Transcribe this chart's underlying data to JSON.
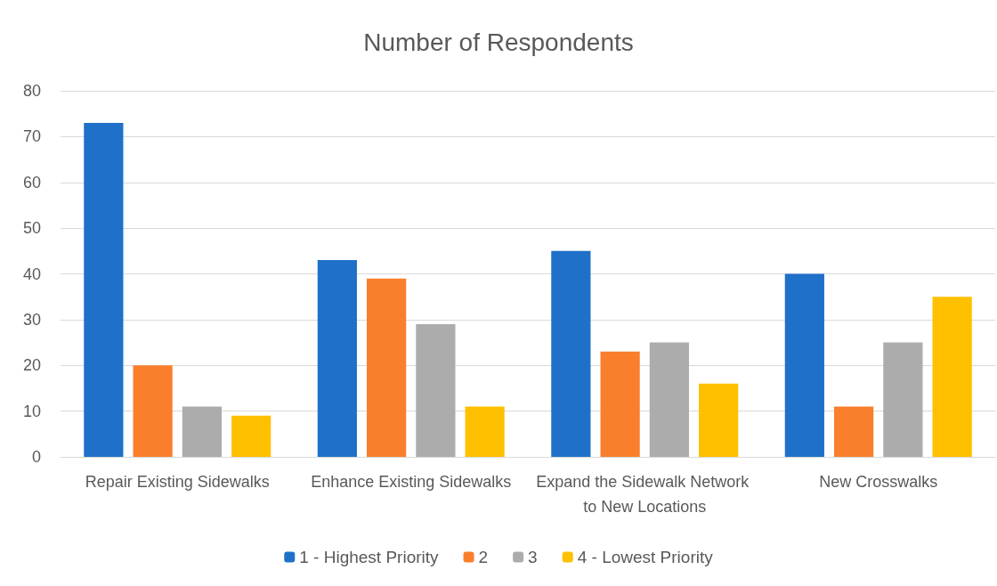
{
  "chart_data": {
    "type": "bar",
    "title": "Number of Respondents",
    "categories": [
      "Repair Existing Sidewalks",
      "Enhance Existing Sidewalks",
      "Expand the Sidewalk Network to New Locations",
      "New Crosswalks"
    ],
    "series": [
      {
        "name": "1 - Highest Priority",
        "color": "#1f70c8",
        "values": [
          73,
          43,
          45,
          40
        ]
      },
      {
        "name": "2",
        "color": "#f97f2c",
        "values": [
          20,
          39,
          23,
          11
        ]
      },
      {
        "name": "3",
        "color": "#acacac",
        "values": [
          11,
          29,
          25,
          25
        ]
      },
      {
        "name": "4 - Lowest Priority",
        "color": "#ffc000",
        "values": [
          9,
          11,
          16,
          35
        ]
      }
    ],
    "ylim": [
      0,
      80
    ],
    "yticks": [
      0,
      10,
      20,
      30,
      40,
      50,
      60,
      70,
      80
    ],
    "grid": "y",
    "legend": "bottom"
  }
}
